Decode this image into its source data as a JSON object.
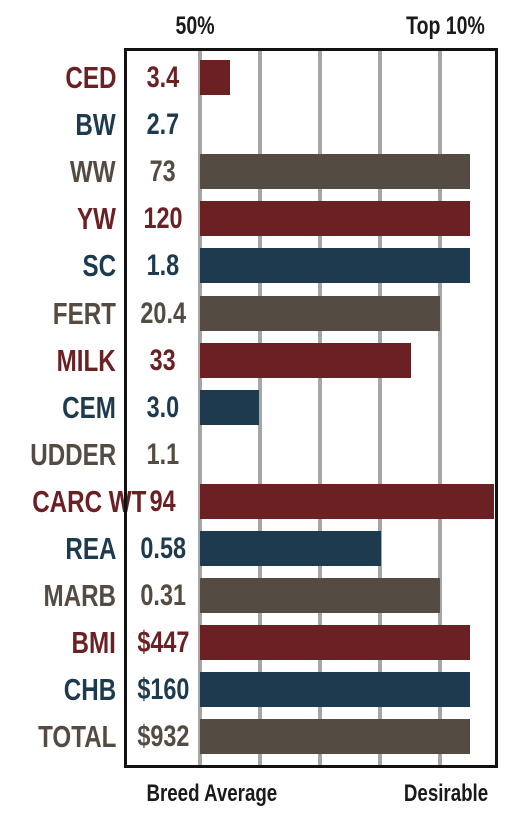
{
  "header": {
    "left_label": "50%",
    "right_label": "Top 10%"
  },
  "footer": {
    "left_label": "Breed Average",
    "right_label": "Desirable"
  },
  "colors": {
    "red": "#6b2024",
    "blue": "#1e3a4f",
    "gray": "#544c42"
  },
  "chart_data": {
    "type": "bar",
    "orientation": "horizontal",
    "categories": [
      "CED",
      "BW",
      "WW",
      "YW",
      "SC",
      "FERT",
      "MILK",
      "CEM",
      "UDDER",
      "CARC WT",
      "REA",
      "MARB",
      "BMI",
      "CHB",
      "TOTAL"
    ],
    "value_labels": [
      "3.4",
      "2.7",
      "73",
      "120",
      "1.8",
      "20.4",
      "33",
      "3.0",
      "1.1",
      "94",
      "0.58",
      "0.31",
      "$447",
      "$160",
      "$932"
    ],
    "bar_levels": [
      0.11,
      0,
      1.0,
      1.0,
      1.0,
      0.89,
      0.78,
      0.22,
      0,
      1.09,
      0.67,
      0.89,
      1.0,
      1.0,
      1.0
    ],
    "bar_colors": [
      "red",
      "blue",
      "gray",
      "red",
      "blue",
      "gray",
      "red",
      "blue",
      "gray",
      "red",
      "blue",
      "gray",
      "red",
      "blue",
      "gray"
    ],
    "x_axis": {
      "left_label": "Breed Average",
      "right_label": "Desirable",
      "top_left": "50%",
      "top_right": "Top 10%"
    },
    "grid": true
  }
}
